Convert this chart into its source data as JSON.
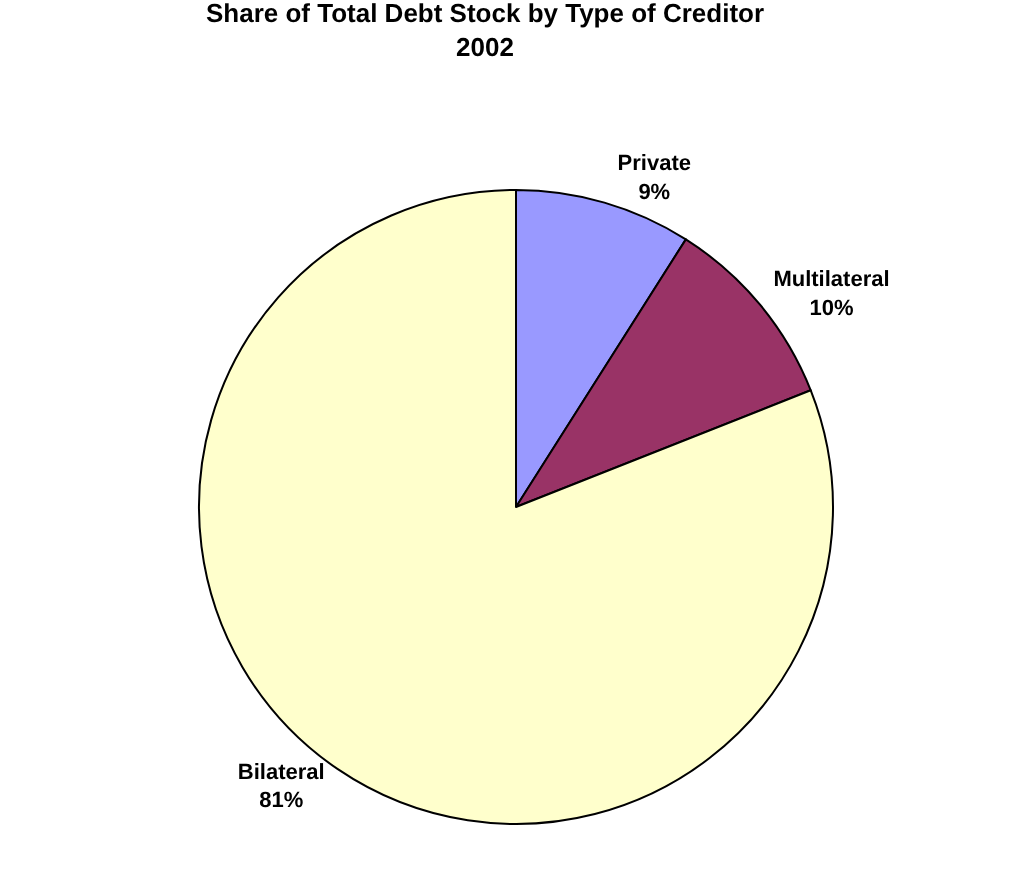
{
  "chart_data": {
    "type": "pie",
    "title": "Share of Total Debt Stock by Type of Creditor\n2002",
    "categories": [
      "Private",
      "Multilateral",
      "Bilateral"
    ],
    "values": [
      9,
      10,
      81
    ],
    "value_labels": [
      "9%",
      "10%",
      "81%"
    ],
    "colors": [
      "#9999ff",
      "#993366",
      "#ffffcc"
    ],
    "legend": false
  }
}
